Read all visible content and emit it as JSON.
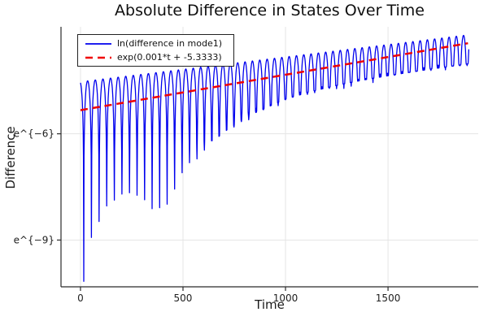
{
  "title": "Absolute Difference in States Over Time",
  "axes": {
    "xlabel": "Time",
    "ylabel": "Difference"
  },
  "legend": {
    "items": [
      {
        "label": "ln(difference in mode1)",
        "color": "#0000ee",
        "style": "solid"
      },
      {
        "label": "exp(0.001*t + -5.3333)",
        "color": "#f00000",
        "style": "dashed"
      }
    ]
  },
  "colors": {
    "series_blue": "#0000ee",
    "series_red": "#f00000",
    "grid": "#e5e5e5",
    "spine": "#2b2b2b",
    "tick_text": "#202020",
    "background": "#ffffff"
  },
  "chart_data": {
    "type": "line",
    "title": "Absolute Difference in States Over Time",
    "xlabel": "Time",
    "ylabel": "Difference",
    "grid": true,
    "legend_position": "top-left-inside",
    "xlim": [
      -95,
      1940
    ],
    "ylim": [
      -10.32,
      -2.98
    ],
    "y_scale": "log (labels shown as e^{v})",
    "x_ticks": [
      {
        "v": 0,
        "label": "0"
      },
      {
        "v": 500,
        "label": "500"
      },
      {
        "v": 1000,
        "label": "1000"
      },
      {
        "v": 1500,
        "label": "1500"
      }
    ],
    "y_ticks": [
      {
        "v": -6,
        "label": "e^{−6}"
      },
      {
        "v": -9,
        "label": "e^{−9}"
      }
    ],
    "series": [
      {
        "name": "ln(difference in mode1)",
        "color": "#0000ee",
        "style": "solid",
        "stroke_width": 1.3,
        "model": "y(t) = U(t) + ln|sin(pi*(t-t0)/p(t))|, clamped below at lower envelope L(t); rapid oscillation whose log-amplitude grows ~linearly",
        "t_range": [
          0,
          1895
        ],
        "phase_start": -21.5,
        "upper_envelope": {
          "type": "linear",
          "intercept": -4.53,
          "slope": 0.0007
        },
        "period": {
          "base": 35,
          "amp": 2.5,
          "tau": 800
        },
        "spike_jitter": 0.13,
        "samples_per_arc": 26,
        "lower_envelope_points": [
          [
            0,
            -10.3
          ],
          [
            16,
            -10.12
          ],
          [
            50,
            -9.05
          ],
          [
            85,
            -8.6
          ],
          [
            120,
            -8.2
          ],
          [
            160,
            -7.9
          ],
          [
            210,
            -7.68
          ],
          [
            260,
            -7.6
          ],
          [
            310,
            -7.78
          ],
          [
            360,
            -8.05
          ],
          [
            400,
            -8.2
          ],
          [
            440,
            -7.75
          ],
          [
            490,
            -7.2
          ],
          [
            560,
            -6.75
          ],
          [
            630,
            -6.3
          ],
          [
            700,
            -5.95
          ],
          [
            800,
            -5.55
          ],
          [
            900,
            -5.28
          ],
          [
            1000,
            -5.02
          ],
          [
            1100,
            -4.85
          ],
          [
            1200,
            -4.7
          ],
          [
            1300,
            -4.57
          ],
          [
            1400,
            -4.46
          ],
          [
            1500,
            -4.36
          ],
          [
            1600,
            -4.27
          ],
          [
            1700,
            -4.18
          ],
          [
            1800,
            -4.1
          ],
          [
            1900,
            -4.02
          ]
        ]
      },
      {
        "name": "exp(0.001*t + -5.3333)",
        "color": "#f00000",
        "style": "dashed",
        "stroke_width": 2.5,
        "dash": "9 6",
        "model": "straight line in log space: v(t) = 0.001*t - 5.3333",
        "slope": 0.001,
        "intercept": -5.3333,
        "t_range": [
          0,
          1890
        ]
      }
    ]
  }
}
